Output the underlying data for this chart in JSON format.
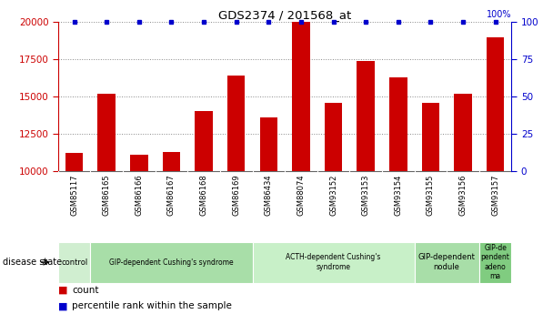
{
  "title": "GDS2374 / 201568_at",
  "samples": [
    "GSM85117",
    "GSM86165",
    "GSM86166",
    "GSM86167",
    "GSM86168",
    "GSM86169",
    "GSM86434",
    "GSM88074",
    "GSM93152",
    "GSM93153",
    "GSM93154",
    "GSM93155",
    "GSM93156",
    "GSM93157"
  ],
  "counts": [
    11200,
    15200,
    11100,
    11300,
    14000,
    16400,
    13600,
    20000,
    14600,
    17400,
    16300,
    14600,
    15200,
    19000
  ],
  "percentiles": [
    100,
    100,
    100,
    100,
    100,
    100,
    100,
    100,
    100,
    100,
    100,
    100,
    100,
    100
  ],
  "bar_color": "#cc0000",
  "pct_color": "#0000cc",
  "ylim_left": [
    10000,
    20000
  ],
  "ylim_right": [
    0,
    100
  ],
  "yticks_left": [
    10000,
    12500,
    15000,
    17500,
    20000
  ],
  "yticks_right": [
    0,
    25,
    50,
    75,
    100
  ],
  "groups": [
    {
      "label": "control",
      "start": 0,
      "end": 1,
      "color": "#d0eed0"
    },
    {
      "label": "GIP-dependent Cushing's syndrome",
      "start": 1,
      "end": 6,
      "color": "#a8dea8"
    },
    {
      "label": "ACTH-dependent Cushing's\nsyndrome",
      "start": 6,
      "end": 11,
      "color": "#c8f0c8"
    },
    {
      "label": "GIP-dependent\nnodule",
      "start": 11,
      "end": 13,
      "color": "#a8dea8"
    },
    {
      "label": "GIP-de\npendent\nadeno\nma",
      "start": 13,
      "end": 14,
      "color": "#80cc80"
    }
  ],
  "disease_state_label": "disease state",
  "legend_count_label": "count",
  "legend_pct_label": "percentile rank within the sample",
  "background_color": "#ffffff",
  "grid_color": "#888888",
  "tick_area_color": "#c8c8c8",
  "pct_label": "100%"
}
